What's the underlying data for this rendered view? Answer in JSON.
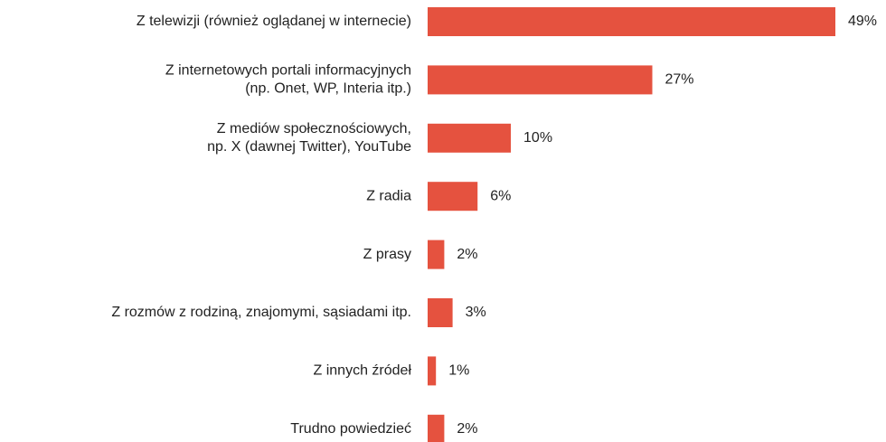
{
  "chart_data": {
    "type": "bar",
    "orientation": "horizontal",
    "categories": [
      [
        "Z telewizji (również oglądanej w internecie)"
      ],
      [
        "Z internetowych portali informacyjnych",
        "(np. Onet, WP, Interia itp.)"
      ],
      [
        "Z mediów społecznościowych,",
        "np. X (dawnej Twitter), YouTube"
      ],
      [
        "Z radia"
      ],
      [
        "Z prasy"
      ],
      [
        "Z rozmów z rodziną, znajomymi, sąsiadami itp."
      ],
      [
        "Z innych źródeł"
      ],
      [
        "Trudno powiedzieć"
      ]
    ],
    "values": [
      49,
      27,
      10,
      6,
      2,
      3,
      1,
      2
    ],
    "value_labels": [
      "49%",
      "27%",
      "10%",
      "6%",
      "2%",
      "3%",
      "1%",
      "2%"
    ],
    "color": "#e5523f"
  }
}
